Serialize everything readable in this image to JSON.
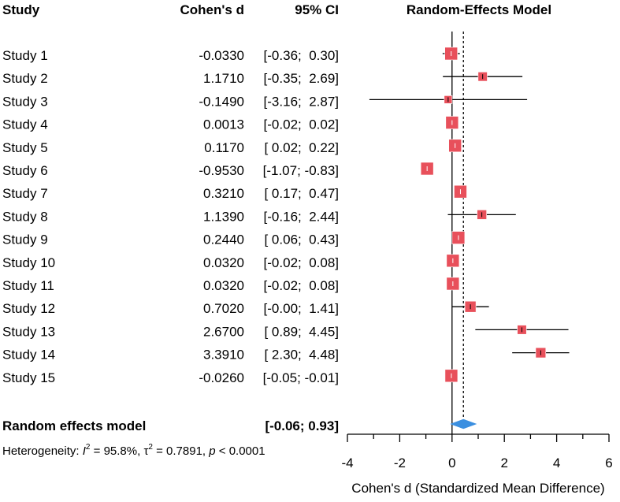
{
  "headers": {
    "study": "Study",
    "effect": "Cohen's d",
    "ci": "95% CI",
    "model": "Random-Effects Model"
  },
  "studies": [
    {
      "name": "Study 1",
      "d_text": "-0.0330",
      "ci_text": "[-0.36;  0.30]"
    },
    {
      "name": "Study 2",
      "d_text": "1.1710",
      "ci_text": "[-0.35;  2.69]"
    },
    {
      "name": "Study 3",
      "d_text": "-0.1490",
      "ci_text": "[-3.16;  2.87]"
    },
    {
      "name": "Study 4",
      "d_text": "0.0013",
      "ci_text": "[-0.02;  0.02]"
    },
    {
      "name": "Study 5",
      "d_text": "0.1170",
      "ci_text": "[ 0.02;  0.22]"
    },
    {
      "name": "Study 6",
      "d_text": "-0.9530",
      "ci_text": "[-1.07; -0.83]"
    },
    {
      "name": "Study 7",
      "d_text": "0.3210",
      "ci_text": "[ 0.17;  0.47]"
    },
    {
      "name": "Study 8",
      "d_text": "1.1390",
      "ci_text": "[-0.16;  2.44]"
    },
    {
      "name": "Study 9",
      "d_text": "0.2440",
      "ci_text": "[ 0.06;  0.43]"
    },
    {
      "name": "Study 10",
      "d_text": "0.0320",
      "ci_text": "[-0.02;  0.08]"
    },
    {
      "name": "Study 11",
      "d_text": "0.0320",
      "ci_text": "[-0.02;  0.08]"
    },
    {
      "name": "Study 12",
      "d_text": "0.7020",
      "ci_text": "[-0.00;  1.41]"
    },
    {
      "name": "Study 13",
      "d_text": "2.6700",
      "ci_text": "[ 0.89;  4.45]"
    },
    {
      "name": "Study 14",
      "d_text": "3.3910",
      "ci_text": "[ 2.30;  4.48]"
    },
    {
      "name": "Study 15",
      "d_text": "-0.0260",
      "ci_text": "[-0.05; -0.01]"
    }
  ],
  "summary": {
    "label": "Random effects model",
    "ci_text": "[-0.06;  0.93]"
  },
  "heterogeneity": {
    "prefix": "Heterogeneity: ",
    "i2_symbol": "I",
    "i2_exp": "2",
    "i2_value": " = 95.8%, ",
    "tau_symbol": "τ",
    "tau_exp": "2",
    "tau_value": " = 0.7891, ",
    "p_symbol": "p",
    "p_value": " < 0.0001"
  },
  "colors": {
    "box": "#e8505b",
    "box_stroke": "#ffffff",
    "diamond": "#3b8fe0",
    "line": "#000000"
  },
  "chart_data": {
    "type": "forest",
    "title": "Random-Effects Model",
    "xlabel": "Cohen's d (Standardized Mean Difference)",
    "xlim": [
      -4,
      6
    ],
    "xticks": [
      -4,
      -2,
      0,
      2,
      4,
      6
    ],
    "xtick_labels": [
      "-4",
      "-2",
      "0",
      "2",
      "4",
      "6"
    ],
    "null_line": 0,
    "summary_line": 0.435,
    "series": [
      {
        "name": "Study 1",
        "d": -0.033,
        "lower": -0.36,
        "upper": 0.3,
        "weight": 1.0
      },
      {
        "name": "Study 2",
        "d": 1.171,
        "lower": -0.35,
        "upper": 2.69,
        "weight": 0.45
      },
      {
        "name": "Study 3",
        "d": -0.149,
        "lower": -3.16,
        "upper": 2.87,
        "weight": 0.25
      },
      {
        "name": "Study 4",
        "d": 0.0013,
        "lower": -0.02,
        "upper": 0.02,
        "weight": 1.0
      },
      {
        "name": "Study 5",
        "d": 0.117,
        "lower": 0.02,
        "upper": 0.22,
        "weight": 1.0
      },
      {
        "name": "Study 6",
        "d": -0.953,
        "lower": -1.07,
        "upper": -0.83,
        "weight": 1.0
      },
      {
        "name": "Study 7",
        "d": 0.321,
        "lower": 0.17,
        "upper": 0.47,
        "weight": 1.0
      },
      {
        "name": "Study 8",
        "d": 1.139,
        "lower": -0.16,
        "upper": 2.44,
        "weight": 0.5
      },
      {
        "name": "Study 9",
        "d": 0.244,
        "lower": 0.06,
        "upper": 0.43,
        "weight": 1.0
      },
      {
        "name": "Study 10",
        "d": 0.032,
        "lower": -0.02,
        "upper": 0.08,
        "weight": 1.0
      },
      {
        "name": "Study 11",
        "d": 0.032,
        "lower": -0.02,
        "upper": 0.08,
        "weight": 1.0
      },
      {
        "name": "Study 12",
        "d": 0.702,
        "lower": -0.0,
        "upper": 1.41,
        "weight": 0.75
      },
      {
        "name": "Study 13",
        "d": 2.67,
        "lower": 0.89,
        "upper": 4.45,
        "weight": 0.45
      },
      {
        "name": "Study 14",
        "d": 3.391,
        "lower": 2.3,
        "upper": 4.48,
        "weight": 0.6
      },
      {
        "name": "Study 15",
        "d": -0.026,
        "lower": -0.05,
        "upper": -0.01,
        "weight": 1.0
      }
    ],
    "summary": {
      "d": 0.435,
      "lower": -0.06,
      "upper": 0.93
    }
  }
}
